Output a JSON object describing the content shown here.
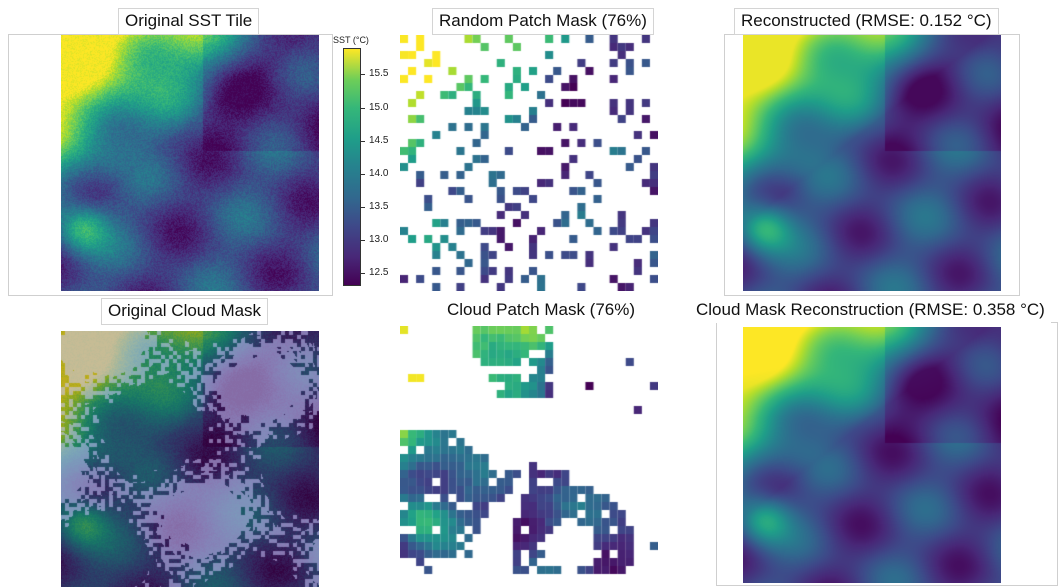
{
  "panels": {
    "original_sst": {
      "title": "Original SST Tile"
    },
    "random_mask": {
      "title": "Random Patch Mask (76%)"
    },
    "reconstructed": {
      "title": "Reconstructed (RMSE: 0.152 °C)"
    },
    "original_cloud": {
      "title": "Original Cloud Mask"
    },
    "cloud_patch": {
      "title": "Cloud Patch Mask (76%)"
    },
    "cloud_recon": {
      "title": "Cloud Mask Reconstruction (RMSE: 0.358 °C)"
    }
  },
  "colorbar": {
    "label": "SST (°C)",
    "ticks": [
      "15.5",
      "15.0",
      "14.5",
      "14.0",
      "13.5",
      "13.0",
      "12.5"
    ],
    "range": [
      12.3,
      15.9
    ],
    "colormap": "viridis"
  },
  "colors": {
    "viridis_low": "#440154",
    "viridis_mid": "#21918c",
    "viridis_high": "#fde725"
  }
}
